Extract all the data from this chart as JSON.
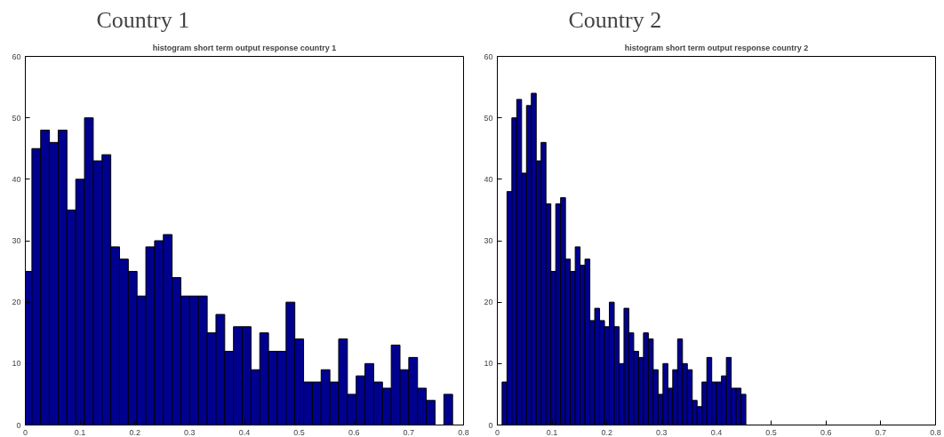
{
  "chart_data": [
    {
      "type": "histogram",
      "title": "Country 1",
      "subtitle": "histogram short term output response country 1",
      "color": "#00008f",
      "bins": [
        0,
        0.012,
        0.028,
        0.044,
        0.06,
        0.076,
        0.092,
        0.108,
        0.124,
        0.14,
        0.156,
        0.172,
        0.188,
        0.204,
        0.22,
        0.236,
        0.252,
        0.268,
        0.284,
        0.3,
        0.316,
        0.332,
        0.348,
        0.364,
        0.38,
        0.396,
        0.412,
        0.428,
        0.444,
        0.46,
        0.476,
        0.492,
        0.508,
        0.524,
        0.54,
        0.556,
        0.572,
        0.588,
        0.604,
        0.62,
        0.636,
        0.652,
        0.668,
        0.684,
        0.7,
        0.716,
        0.732,
        0.748,
        0.764,
        0.78
      ],
      "values": [
        25,
        45,
        48,
        46,
        48,
        35,
        40,
        50,
        43,
        44,
        29,
        27,
        25,
        21,
        29,
        30,
        31,
        24,
        21,
        21,
        21,
        15,
        18,
        12,
        16,
        16,
        9,
        15,
        12,
        12,
        20,
        14,
        7,
        7,
        9,
        7,
        14,
        5,
        8,
        10,
        7,
        6,
        13,
        9,
        11,
        6,
        4,
        0,
        5
      ],
      "xlim": [
        0,
        0.8
      ],
      "xticks": [
        0,
        0.1,
        0.2,
        0.3,
        0.4,
        0.5,
        0.6,
        0.7,
        0.8
      ],
      "ylim": [
        0,
        60
      ],
      "yticks": [
        0,
        10,
        20,
        30,
        40,
        50,
        60
      ],
      "grid": false
    },
    {
      "type": "histogram",
      "title": "Country 2",
      "subtitle": "histogram short term output response country 2",
      "color": "#00008f",
      "bins": [
        0.0087,
        0.0176,
        0.0265,
        0.0354,
        0.0443,
        0.0532,
        0.0621,
        0.071,
        0.0799,
        0.0888,
        0.0977,
        0.1066,
        0.1155,
        0.1244,
        0.1333,
        0.1422,
        0.1511,
        0.16,
        0.1689,
        0.1778,
        0.1867,
        0.1956,
        0.2045,
        0.2134,
        0.2223,
        0.2312,
        0.2401,
        0.249,
        0.2579,
        0.2668,
        0.2757,
        0.2846,
        0.2935,
        0.3024,
        0.3113,
        0.3202,
        0.3291,
        0.338,
        0.3469,
        0.3558,
        0.3647,
        0.3736,
        0.3825,
        0.3914,
        0.4003,
        0.4092,
        0.4181,
        0.427,
        0.4359,
        0.4448,
        0.4537
      ],
      "values": [
        7,
        38,
        50,
        53,
        41,
        52,
        54,
        43,
        46,
        36,
        25,
        36,
        37,
        27,
        25,
        29,
        26,
        27,
        17,
        19,
        17,
        16,
        20,
        16,
        10,
        19,
        15,
        12,
        11,
        15,
        14,
        9,
        5,
        10,
        6,
        9,
        14,
        10,
        9,
        4,
        3,
        7,
        11,
        7,
        7,
        8,
        11,
        6,
        6,
        5
      ],
      "xlim": [
        0,
        0.8
      ],
      "xticks": [
        0,
        0.1,
        0.2,
        0.3,
        0.4,
        0.5,
        0.6,
        0.7,
        0.8
      ],
      "ylim": [
        0,
        60
      ],
      "yticks": [
        0,
        10,
        20,
        30,
        40,
        50,
        60
      ],
      "grid": false
    }
  ]
}
